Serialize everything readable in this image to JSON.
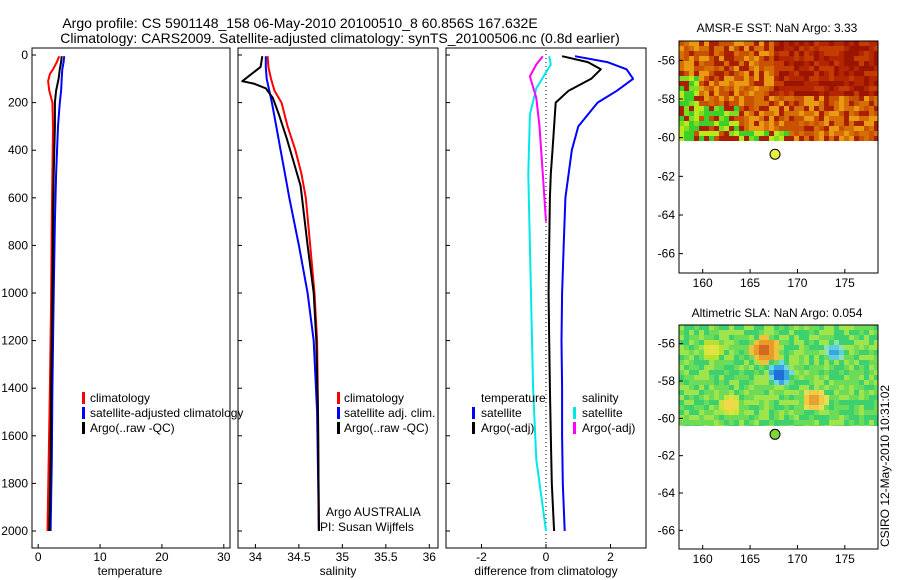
{
  "title": {
    "line1": "Argo profile: CS 5901148_158 06-May-2010 20100510_8 60.856S 167.632E",
    "line2": "Climatology: CARS2009. Satellite-adjusted climatology: synTS_20100506.nc (0.8d earlier)"
  },
  "footer": {
    "stamp": "CSIRO 12-May-2010 10:31:02",
    "argo_org": "Argo AUSTRALIA",
    "pi": "PI: Susan Wijffels"
  },
  "colors": {
    "climatology": "#ff0000",
    "satellite": "#0000ff",
    "argo": "#000000",
    "sal_satellite": "#00e8e8",
    "sal_argo": "#ff00ff",
    "argo_dot_sst": "#e6f23c",
    "argo_dot_sla": "#7dd63c"
  },
  "chart_data": [
    {
      "type": "line",
      "id": "temperature",
      "xlabel": "temperature",
      "xlim": [
        -1,
        31
      ],
      "ylim": [
        2050,
        0
      ],
      "xticks": [
        0,
        10,
        20,
        30
      ],
      "yticks": [
        0,
        200,
        400,
        600,
        800,
        1000,
        1200,
        1400,
        1600,
        1800,
        2000
      ],
      "legend": [
        "climatology",
        "satellite-adjusted climatology",
        "Argo(..raw -QC)"
      ],
      "series": [
        {
          "name": "climatology",
          "color": "#ff0000",
          "points": [
            [
              3.4,
              5
            ],
            [
              3.0,
              30
            ],
            [
              2.4,
              60
            ],
            [
              1.9,
              80
            ],
            [
              1.6,
              110
            ],
            [
              1.8,
              150
            ],
            [
              2.3,
              200
            ],
            [
              2.4,
              300
            ],
            [
              2.3,
              500
            ],
            [
              2.2,
              700
            ],
            [
              2.1,
              1000
            ],
            [
              1.9,
              1400
            ],
            [
              1.7,
              1700
            ],
            [
              1.5,
              2000
            ]
          ]
        },
        {
          "name": "satellite-adjusted climatology",
          "color": "#0000ff",
          "points": [
            [
              4.2,
              5
            ],
            [
              4.1,
              30
            ],
            [
              3.9,
              60
            ],
            [
              3.8,
              100
            ],
            [
              3.7,
              150
            ],
            [
              3.5,
              200
            ],
            [
              3.2,
              300
            ],
            [
              2.9,
              500
            ],
            [
              2.7,
              700
            ],
            [
              2.5,
              1000
            ],
            [
              2.3,
              1400
            ],
            [
              2.2,
              1700
            ],
            [
              2.0,
              2000
            ]
          ]
        },
        {
          "name": "Argo(..raw -QC)",
          "color": "#000000",
          "points": [
            [
              3.8,
              5
            ],
            [
              3.7,
              30
            ],
            [
              3.5,
              60
            ],
            [
              3.3,
              100
            ],
            [
              2.9,
              150
            ],
            [
              2.7,
              200
            ],
            [
              2.7,
              300
            ],
            [
              2.5,
              500
            ],
            [
              2.4,
              700
            ],
            [
              2.3,
              1000
            ],
            [
              2.1,
              1400
            ],
            [
              2.0,
              1700
            ],
            [
              1.8,
              2000
            ]
          ]
        }
      ]
    },
    {
      "type": "line",
      "id": "salinity",
      "xlabel": "salinity",
      "xlim": [
        33.8,
        36.1
      ],
      "ylim": [
        2050,
        0
      ],
      "xticks": [
        34,
        34.5,
        35,
        35.5,
        36
      ],
      "yticks": [
        0,
        200,
        400,
        600,
        800,
        1000,
        1200,
        1400,
        1600,
        1800,
        2000
      ],
      "legend": [
        "climatology",
        "satellite adj. clim.",
        "Argo(..raw -QC)"
      ],
      "series": [
        {
          "name": "climatology",
          "color": "#ff0000",
          "points": [
            [
              34.14,
              5
            ],
            [
              34.15,
              50
            ],
            [
              34.18,
              100
            ],
            [
              34.22,
              150
            ],
            [
              34.3,
              200
            ],
            [
              34.37,
              300
            ],
            [
              34.46,
              400
            ],
            [
              34.53,
              500
            ],
            [
              34.58,
              600
            ],
            [
              34.63,
              800
            ],
            [
              34.68,
              1000
            ],
            [
              34.71,
              1200
            ],
            [
              34.72,
              1500
            ],
            [
              34.73,
              2000
            ]
          ]
        },
        {
          "name": "satellite adj. clim.",
          "color": "#0000ff",
          "points": [
            [
              34.12,
              5
            ],
            [
              34.12,
              50
            ],
            [
              34.13,
              100
            ],
            [
              34.16,
              150
            ],
            [
              34.19,
              200
            ],
            [
              34.24,
              300
            ],
            [
              34.29,
              400
            ],
            [
              34.34,
              500
            ],
            [
              34.39,
              600
            ],
            [
              34.5,
              800
            ],
            [
              34.6,
              1000
            ],
            [
              34.67,
              1200
            ],
            [
              34.71,
              1500
            ],
            [
              34.73,
              2000
            ]
          ]
        },
        {
          "name": "Argo(..raw -QC)",
          "color": "#000000",
          "points": [
            [
              34.08,
              5
            ],
            [
              34.06,
              50
            ],
            [
              33.85,
              110
            ],
            [
              33.98,
              120
            ],
            [
              34.12,
              140
            ],
            [
              34.2,
              180
            ],
            [
              34.27,
              250
            ],
            [
              34.36,
              350
            ],
            [
              34.44,
              450
            ],
            [
              34.52,
              550
            ],
            [
              34.6,
              800
            ],
            [
              34.67,
              1000
            ],
            [
              34.7,
              1200
            ],
            [
              34.72,
              1500
            ],
            [
              34.73,
              2000
            ]
          ]
        }
      ]
    },
    {
      "type": "line",
      "id": "difference",
      "xlabel": "difference from climatology",
      "xlim": [
        -3.1,
        3.1
      ],
      "ylim": [
        2050,
        0
      ],
      "xticks": [
        -2,
        0,
        2
      ],
      "yticks": [
        0,
        200,
        400,
        600,
        800,
        1000,
        1200,
        1400,
        1600,
        1800,
        2000
      ],
      "legend_temperature": {
        "title": "temperature",
        "items": [
          "satellite",
          "Argo(-adj)"
        ]
      },
      "legend_salinity": {
        "title": "salinity",
        "items": [
          "satellite",
          "Argo(-adj)"
        ]
      },
      "series": [
        {
          "name": "temperature satellite",
          "color": "#0000ff",
          "points": [
            [
              0.9,
              5
            ],
            [
              1.9,
              30
            ],
            [
              2.5,
              60
            ],
            [
              2.7,
              100
            ],
            [
              2.2,
              150
            ],
            [
              1.6,
              200
            ],
            [
              1.0,
              300
            ],
            [
              0.8,
              400
            ],
            [
              0.7,
              500
            ],
            [
              0.6,
              600
            ],
            [
              0.55,
              800
            ],
            [
              0.5,
              1000
            ],
            [
              0.48,
              1200
            ],
            [
              0.5,
              1400
            ],
            [
              0.5,
              1600
            ],
            [
              0.52,
              1800
            ],
            [
              0.58,
              2000
            ]
          ]
        },
        {
          "name": "temperature Argo(-adj)",
          "color": "#000000",
          "points": [
            [
              0.5,
              5
            ],
            [
              1.3,
              30
            ],
            [
              1.7,
              60
            ],
            [
              1.4,
              100
            ],
            [
              0.7,
              150
            ],
            [
              0.3,
              200
            ],
            [
              0.25,
              300
            ],
            [
              0.2,
              400
            ],
            [
              0.15,
              500
            ],
            [
              0.12,
              600
            ],
            [
              0.1,
              800
            ],
            [
              0.08,
              1000
            ],
            [
              0.1,
              1200
            ],
            [
              0.12,
              1400
            ],
            [
              0.15,
              1600
            ],
            [
              0.18,
              1800
            ],
            [
              0.25,
              2000
            ]
          ]
        },
        {
          "name": "salinity satellite",
          "color": "#00e8e8",
          "points": [
            [
              0.1,
              5
            ],
            [
              0.15,
              40
            ],
            [
              -0.3,
              140
            ],
            [
              -0.5,
              250
            ],
            [
              -0.55,
              500
            ],
            [
              -0.5,
              800
            ],
            [
              -0.45,
              1100
            ],
            [
              -0.4,
              1400
            ],
            [
              -0.3,
              1700
            ],
            [
              -0.1,
              1900
            ],
            [
              0.0,
              2000
            ]
          ]
        },
        {
          "name": "salinity Argo(-adj)",
          "color": "#ff00ff",
          "points": [
            [
              -0.1,
              5
            ],
            [
              -0.3,
              40
            ],
            [
              -0.5,
              90
            ],
            [
              -0.3,
              180
            ],
            [
              -0.2,
              300
            ],
            [
              -0.1,
              500
            ],
            [
              0.0,
              700
            ]
          ]
        }
      ]
    }
  ],
  "maps": {
    "sst": {
      "title": "AMSR-E SST: NaN Argo: 3.33",
      "xticks": [
        160,
        165,
        170,
        175
      ],
      "yticks": [
        -56,
        -58,
        -60,
        -62,
        -64,
        -66
      ],
      "xlim": [
        157.5,
        178.5
      ],
      "ylim": [
        -55,
        -67
      ],
      "argo_lon": 167.632,
      "argo_lat": -60.856
    },
    "sla": {
      "title": "Altimetric SLA: NaN Argo: 0.054",
      "xticks": [
        160,
        165,
        170,
        175
      ],
      "yticks": [
        -56,
        -58,
        -60,
        -62,
        -64,
        -66
      ],
      "xlim": [
        157.5,
        178.5
      ],
      "ylim": [
        -55,
        -67
      ],
      "argo_lon": 167.632,
      "argo_lat": -60.856
    }
  }
}
